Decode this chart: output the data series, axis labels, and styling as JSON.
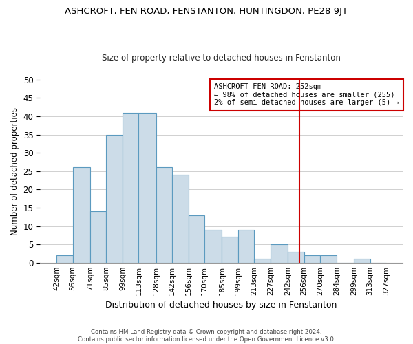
{
  "title": "ASHCROFT, FEN ROAD, FENSTANTON, HUNTINGDON, PE28 9JT",
  "subtitle": "Size of property relative to detached houses in Fenstanton",
  "xlabel": "Distribution of detached houses by size in Fenstanton",
  "ylabel": "Number of detached properties",
  "footer_line1": "Contains HM Land Registry data © Crown copyright and database right 2024.",
  "footer_line2": "Contains public sector information licensed under the Open Government Licence v3.0.",
  "bar_color": "#ccdce8",
  "bar_edgecolor": "#5b9abf",
  "bin_edges": [
    42,
    56,
    71,
    85,
    99,
    113,
    128,
    142,
    156,
    170,
    185,
    199,
    213,
    227,
    242,
    256,
    270,
    284,
    299,
    313,
    327
  ],
  "bin_labels": [
    "42sqm",
    "56sqm",
    "71sqm",
    "85sqm",
    "99sqm",
    "113sqm",
    "128sqm",
    "142sqm",
    "156sqm",
    "170sqm",
    "185sqm",
    "199sqm",
    "213sqm",
    "227sqm",
    "242sqm",
    "256sqm",
    "270sqm",
    "284sqm",
    "299sqm",
    "313sqm",
    "327sqm"
  ],
  "counts": [
    2,
    26,
    14,
    35,
    41,
    41,
    26,
    24,
    13,
    9,
    7,
    9,
    1,
    5,
    3,
    2,
    2,
    0,
    1,
    0
  ],
  "vline_x": 252,
  "vline_color": "#cc0000",
  "annotation_title": "ASHCROFT FEN ROAD: 252sqm",
  "annotation_line1": "← 98% of detached houses are smaller (255)",
  "annotation_line2": "2% of semi-detached houses are larger (5) →",
  "annotation_box_edgecolor": "#cc0000",
  "ylim": [
    0,
    50
  ],
  "yticks": [
    0,
    5,
    10,
    15,
    20,
    25,
    30,
    35,
    40,
    45,
    50
  ]
}
